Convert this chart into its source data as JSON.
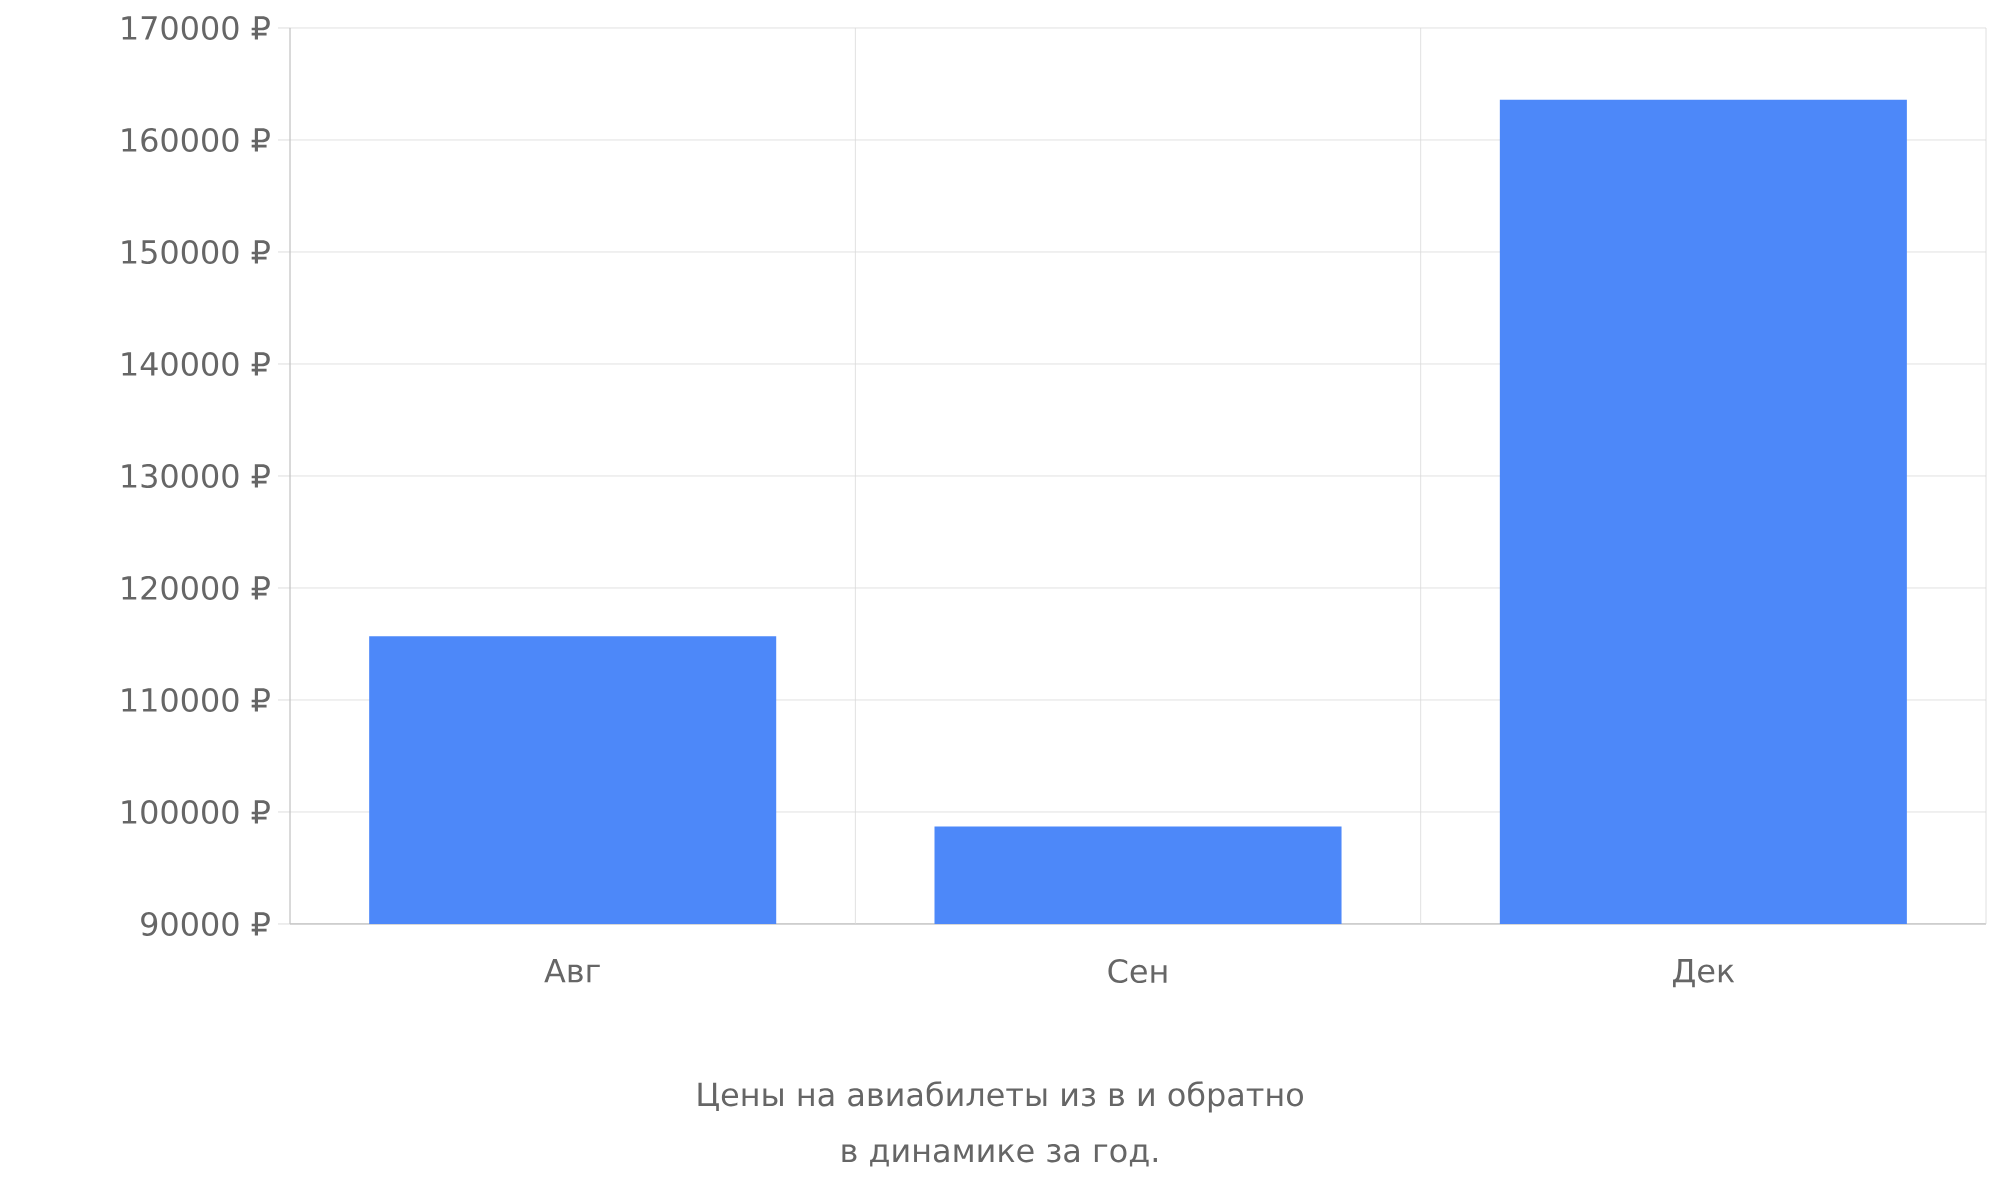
{
  "chart_data": {
    "type": "bar",
    "categories": [
      "Авг",
      "Сен",
      "Дек"
    ],
    "values": [
      115700,
      98700,
      163600
    ],
    "color": "#4d88f9",
    "ylim": [
      90000,
      170000
    ],
    "yticks": [
      {
        "value": 90000,
        "label": "90000 ₽"
      },
      {
        "value": 100000,
        "label": "100000 ₽"
      },
      {
        "value": 110000,
        "label": "110000 ₽"
      },
      {
        "value": 120000,
        "label": "120000 ₽"
      },
      {
        "value": 130000,
        "label": "130000 ₽"
      },
      {
        "value": 140000,
        "label": "140000 ₽"
      },
      {
        "value": 150000,
        "label": "150000 ₽"
      },
      {
        "value": 160000,
        "label": "160000 ₽"
      },
      {
        "value": 170000,
        "label": "170000 ₽"
      }
    ],
    "grid": true,
    "annotations": [
      "Цены на авиабилеты из  в  и обратно",
      "в динамике за год."
    ]
  }
}
